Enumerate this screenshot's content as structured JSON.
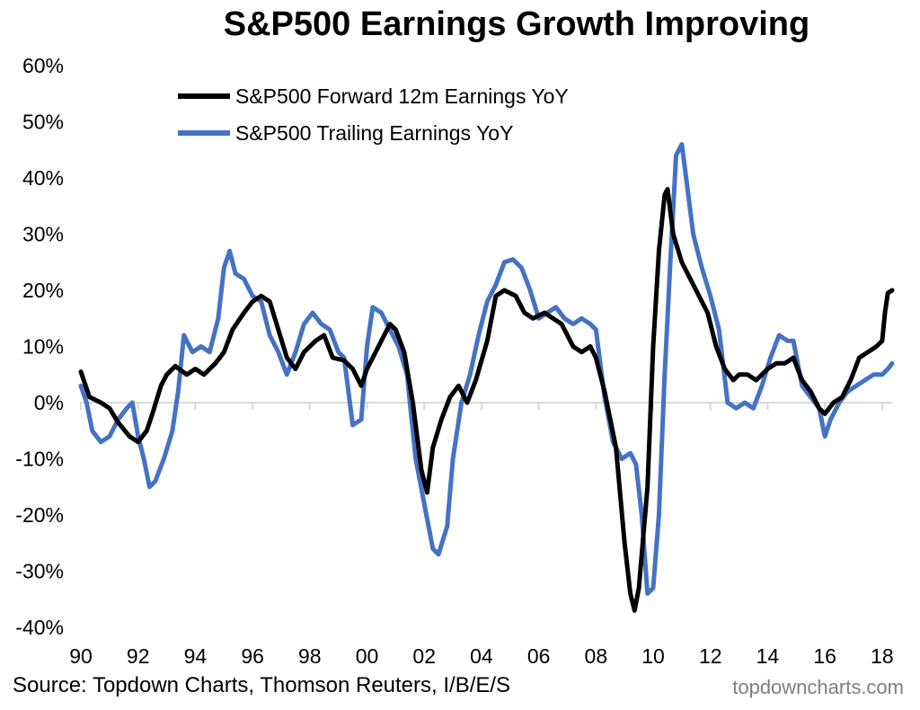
{
  "title": "S&P500 Earnings Growth Improving",
  "source": "Source: Topdown Charts, Thomson Reuters, I/B/E/S",
  "brand": "topdowncharts.com",
  "chart_data": {
    "type": "line",
    "title": "S&P500 Earnings Growth Improving",
    "xlabel": "",
    "ylabel": "",
    "xlim": [
      1990.0,
      2018.35
    ],
    "ylim": [
      -40,
      60
    ],
    "x_ticks": [
      1990,
      1992,
      1994,
      1996,
      1998,
      2000,
      2002,
      2004,
      2006,
      2008,
      2010,
      2012,
      2014,
      2016,
      2018
    ],
    "x_tick_labels": [
      "90",
      "92",
      "94",
      "96",
      "98",
      "00",
      "02",
      "04",
      "06",
      "08",
      "10",
      "12",
      "14",
      "16",
      "18"
    ],
    "y_ticks": [
      -40,
      -30,
      -20,
      -10,
      0,
      10,
      20,
      30,
      40,
      50,
      60
    ],
    "y_tick_labels": [
      "-40%",
      "-30%",
      "-20%",
      "-10%",
      "0%",
      "10%",
      "20%",
      "30%",
      "40%",
      "50%",
      "60%"
    ],
    "grid": false,
    "legend_position": "top-left",
    "series": [
      {
        "name": "S&P500 Forward 12m Earnings YoY",
        "color": "#000000",
        "points": [
          [
            1990.0,
            5.5
          ],
          [
            1990.3,
            1
          ],
          [
            1990.7,
            0
          ],
          [
            1991.0,
            -1
          ],
          [
            1991.3,
            -3.5
          ],
          [
            1991.7,
            -6
          ],
          [
            1992.0,
            -7
          ],
          [
            1992.3,
            -5
          ],
          [
            1992.5,
            -2
          ],
          [
            1992.8,
            3
          ],
          [
            1993.0,
            5
          ],
          [
            1993.3,
            6.5
          ],
          [
            1993.7,
            5
          ],
          [
            1994.0,
            6
          ],
          [
            1994.3,
            5
          ],
          [
            1994.7,
            7
          ],
          [
            1995.0,
            9
          ],
          [
            1995.3,
            13
          ],
          [
            1995.7,
            16
          ],
          [
            1996.0,
            18
          ],
          [
            1996.3,
            19
          ],
          [
            1996.6,
            18
          ],
          [
            1996.9,
            13
          ],
          [
            1997.2,
            8
          ],
          [
            1997.5,
            6
          ],
          [
            1997.8,
            9
          ],
          [
            1998.2,
            11
          ],
          [
            1998.5,
            12
          ],
          [
            1998.8,
            8
          ],
          [
            1999.2,
            7.5
          ],
          [
            1999.5,
            6
          ],
          [
            1999.8,
            3
          ],
          [
            2000.0,
            6
          ],
          [
            2000.4,
            10
          ],
          [
            2000.8,
            14
          ],
          [
            2001.0,
            13
          ],
          [
            2001.3,
            9
          ],
          [
            2001.6,
            0
          ],
          [
            2001.9,
            -12
          ],
          [
            2002.1,
            -16
          ],
          [
            2002.3,
            -8
          ],
          [
            2002.6,
            -3
          ],
          [
            2002.9,
            1
          ],
          [
            2003.2,
            3
          ],
          [
            2003.5,
            0
          ],
          [
            2003.8,
            4
          ],
          [
            2004.2,
            11
          ],
          [
            2004.5,
            19
          ],
          [
            2004.8,
            20
          ],
          [
            2005.2,
            19
          ],
          [
            2005.5,
            16
          ],
          [
            2005.8,
            15
          ],
          [
            2006.2,
            16
          ],
          [
            2006.5,
            15
          ],
          [
            2006.8,
            14
          ],
          [
            2007.2,
            10
          ],
          [
            2007.5,
            9
          ],
          [
            2007.8,
            10
          ],
          [
            2008.0,
            8
          ],
          [
            2008.3,
            2
          ],
          [
            2008.7,
            -8
          ],
          [
            2009.0,
            -25
          ],
          [
            2009.2,
            -34
          ],
          [
            2009.35,
            -37
          ],
          [
            2009.5,
            -33
          ],
          [
            2009.8,
            -15
          ],
          [
            2010.0,
            10
          ],
          [
            2010.2,
            27
          ],
          [
            2010.4,
            37
          ],
          [
            2010.5,
            38
          ],
          [
            2010.7,
            30
          ],
          [
            2011.0,
            25
          ],
          [
            2011.3,
            22
          ],
          [
            2011.6,
            19
          ],
          [
            2011.9,
            16
          ],
          [
            2012.2,
            10
          ],
          [
            2012.5,
            6
          ],
          [
            2012.8,
            4
          ],
          [
            2013.0,
            5
          ],
          [
            2013.3,
            5
          ],
          [
            2013.6,
            4
          ],
          [
            2014.0,
            6
          ],
          [
            2014.3,
            7
          ],
          [
            2014.6,
            7
          ],
          [
            2014.9,
            8
          ],
          [
            2015.2,
            4
          ],
          [
            2015.5,
            2
          ],
          [
            2015.8,
            -1
          ],
          [
            2016.0,
            -2
          ],
          [
            2016.3,
            0
          ],
          [
            2016.6,
            1
          ],
          [
            2016.9,
            4
          ],
          [
            2017.2,
            8
          ],
          [
            2017.5,
            9
          ],
          [
            2017.8,
            10
          ],
          [
            2018.0,
            11
          ],
          [
            2018.1,
            16
          ],
          [
            2018.2,
            19.5
          ],
          [
            2018.35,
            20
          ]
        ]
      },
      {
        "name": "S&P500 Trailing Earnings YoY",
        "color": "#4472C4",
        "points": [
          [
            1990.0,
            3
          ],
          [
            1990.2,
            0
          ],
          [
            1990.4,
            -5
          ],
          [
            1990.7,
            -7
          ],
          [
            1991.0,
            -6
          ],
          [
            1991.3,
            -3
          ],
          [
            1991.6,
            -1
          ],
          [
            1991.8,
            0
          ],
          [
            1992.0,
            -6
          ],
          [
            1992.2,
            -10
          ],
          [
            1992.4,
            -15
          ],
          [
            1992.6,
            -14
          ],
          [
            1992.9,
            -10
          ],
          [
            1993.2,
            -5
          ],
          [
            1993.4,
            2
          ],
          [
            1993.6,
            12
          ],
          [
            1993.9,
            9
          ],
          [
            1994.2,
            10
          ],
          [
            1994.5,
            9
          ],
          [
            1994.8,
            15
          ],
          [
            1995.0,
            24
          ],
          [
            1995.2,
            27
          ],
          [
            1995.4,
            23
          ],
          [
            1995.7,
            22
          ],
          [
            1996.0,
            19
          ],
          [
            1996.3,
            18
          ],
          [
            1996.6,
            12
          ],
          [
            1996.9,
            9
          ],
          [
            1997.2,
            5
          ],
          [
            1997.5,
            9
          ],
          [
            1997.8,
            14
          ],
          [
            1998.1,
            16
          ],
          [
            1998.4,
            14
          ],
          [
            1998.7,
            13
          ],
          [
            1999.0,
            9
          ],
          [
            1999.2,
            8
          ],
          [
            1999.5,
            -4
          ],
          [
            1999.8,
            -3
          ],
          [
            2000.0,
            10
          ],
          [
            2000.2,
            17
          ],
          [
            2000.5,
            16
          ],
          [
            2000.8,
            13
          ],
          [
            2001.1,
            10
          ],
          [
            2001.4,
            5
          ],
          [
            2001.7,
            -10
          ],
          [
            2002.0,
            -18
          ],
          [
            2002.3,
            -26
          ],
          [
            2002.5,
            -27
          ],
          [
            2002.8,
            -22
          ],
          [
            2003.0,
            -10
          ],
          [
            2003.3,
            0
          ],
          [
            2003.6,
            5
          ],
          [
            2003.9,
            12
          ],
          [
            2004.2,
            18
          ],
          [
            2004.5,
            21
          ],
          [
            2004.8,
            25
          ],
          [
            2005.1,
            25.5
          ],
          [
            2005.4,
            24
          ],
          [
            2005.7,
            20
          ],
          [
            2006.0,
            15
          ],
          [
            2006.3,
            16
          ],
          [
            2006.6,
            17
          ],
          [
            2006.9,
            15
          ],
          [
            2007.2,
            14
          ],
          [
            2007.5,
            15
          ],
          [
            2007.8,
            14
          ],
          [
            2008.0,
            13
          ],
          [
            2008.3,
            1
          ],
          [
            2008.6,
            -7
          ],
          [
            2008.9,
            -10
          ],
          [
            2009.2,
            -9
          ],
          [
            2009.4,
            -11
          ],
          [
            2009.6,
            -20
          ],
          [
            2009.8,
            -34
          ],
          [
            2010.0,
            -33
          ],
          [
            2010.2,
            -20
          ],
          [
            2010.4,
            5
          ],
          [
            2010.6,
            25
          ],
          [
            2010.8,
            44
          ],
          [
            2011.0,
            46
          ],
          [
            2011.2,
            38
          ],
          [
            2011.4,
            30
          ],
          [
            2011.7,
            24
          ],
          [
            2012.0,
            19
          ],
          [
            2012.3,
            13
          ],
          [
            2012.6,
            0
          ],
          [
            2012.9,
            -1
          ],
          [
            2013.2,
            0
          ],
          [
            2013.5,
            -1
          ],
          [
            2013.8,
            3
          ],
          [
            2014.1,
            8
          ],
          [
            2014.4,
            12
          ],
          [
            2014.7,
            11
          ],
          [
            2014.9,
            11
          ],
          [
            2015.2,
            3
          ],
          [
            2015.5,
            1
          ],
          [
            2015.8,
            -1
          ],
          [
            2016.0,
            -6
          ],
          [
            2016.2,
            -3
          ],
          [
            2016.5,
            0
          ],
          [
            2016.8,
            2
          ],
          [
            2017.1,
            3
          ],
          [
            2017.4,
            4
          ],
          [
            2017.7,
            5
          ],
          [
            2018.0,
            5
          ],
          [
            2018.2,
            6
          ],
          [
            2018.35,
            7
          ]
        ]
      }
    ]
  }
}
